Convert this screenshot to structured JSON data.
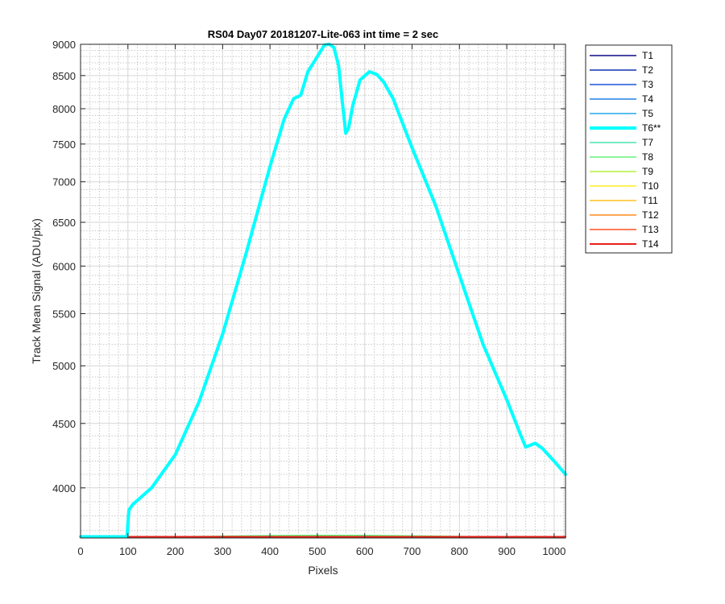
{
  "chart_data": {
    "type": "line",
    "title": "RS04 Day07 20181207-Lite-063 int time = 2 sec",
    "xlabel": "Pixels",
    "ylabel": "Track Mean Signal (ADU/pix)",
    "xlim": [
      0,
      1024
    ],
    "ylim": [
      3650,
      9000
    ],
    "yscale": "log",
    "grid": true,
    "minor_grid": true,
    "legend_position": "outside-right",
    "x_ticks": [
      0,
      100,
      200,
      300,
      400,
      500,
      600,
      700,
      800,
      900,
      1000
    ],
    "y_ticks": [
      4000,
      4500,
      5000,
      5500,
      6000,
      6500,
      7000,
      7500,
      8000,
      8500,
      9000
    ],
    "series": [
      {
        "name": "T1",
        "color": "#0c0c8a",
        "width": 1.5,
        "x": [
          0,
          1024
        ],
        "y": [
          3650,
          3650
        ]
      },
      {
        "name": "T2",
        "color": "#1030b4",
        "width": 1.5,
        "x": [
          0,
          1024
        ],
        "y": [
          3650,
          3650
        ]
      },
      {
        "name": "T3",
        "color": "#1a55d8",
        "width": 1.5,
        "x": [
          0,
          1024
        ],
        "y": [
          3650,
          3650
        ]
      },
      {
        "name": "T4",
        "color": "#2080e6",
        "width": 1.5,
        "x": [
          0,
          1024
        ],
        "y": [
          3650,
          3650
        ]
      },
      {
        "name": "T5",
        "color": "#25a8ee",
        "width": 1.5,
        "x": [
          0,
          1024
        ],
        "y": [
          3650,
          3650
        ]
      },
      {
        "name": "T6**",
        "color": "#00ffff",
        "width": 4,
        "x": [
          0,
          98,
          102,
          110,
          150,
          200,
          250,
          300,
          350,
          400,
          430,
          450,
          465,
          480,
          500,
          515,
          525,
          535,
          545,
          552,
          560,
          566,
          575,
          590,
          610,
          625,
          640,
          660,
          700,
          750,
          800,
          850,
          900,
          930,
          940,
          960,
          975,
          1000,
          1024
        ],
        "y": [
          3650,
          3650,
          3840,
          3880,
          4000,
          4250,
          4680,
          5300,
          6150,
          7200,
          7850,
          8150,
          8200,
          8560,
          8800,
          8990,
          9000,
          8950,
          8650,
          8150,
          7650,
          7720,
          8050,
          8430,
          8560,
          8520,
          8400,
          8150,
          7450,
          6700,
          5900,
          5200,
          4700,
          4400,
          4310,
          4340,
          4300,
          4200,
          4100
        ]
      },
      {
        "name": "T7",
        "color": "#48e6b0",
        "width": 1.5,
        "x": [
          0,
          100,
          200,
          300,
          400,
          500,
          600,
          700,
          800,
          900,
          1024
        ],
        "y": [
          3650,
          3650,
          3654,
          3658,
          3661,
          3663,
          3662,
          3660,
          3657,
          3654,
          3650
        ]
      },
      {
        "name": "T8",
        "color": "#66f27a",
        "width": 1.5,
        "x": [
          0,
          100,
          200,
          300,
          400,
          500,
          600,
          700,
          800,
          900,
          1024
        ],
        "y": [
          3650,
          3652,
          3657,
          3662,
          3666,
          3668,
          3667,
          3664,
          3660,
          3655,
          3652
        ]
      },
      {
        "name": "T9",
        "color": "#b6f040",
        "width": 1.5,
        "x": [
          0,
          1024
        ],
        "y": [
          3650,
          3650
        ]
      },
      {
        "name": "T10",
        "color": "#ffee22",
        "width": 1.5,
        "x": [
          0,
          1024
        ],
        "y": [
          3650,
          3650
        ]
      },
      {
        "name": "T11",
        "color": "#ffc020",
        "width": 1.5,
        "x": [
          0,
          1024
        ],
        "y": [
          3650,
          3650
        ]
      },
      {
        "name": "T12",
        "color": "#ff8a1e",
        "width": 1.5,
        "x": [
          0,
          1024
        ],
        "y": [
          3650,
          3650
        ]
      },
      {
        "name": "T13",
        "color": "#ff5020",
        "width": 1.5,
        "x": [
          0,
          1024
        ],
        "y": [
          3650,
          3650
        ]
      },
      {
        "name": "T14",
        "color": "#e8201a",
        "width": 2,
        "x": [
          0,
          1024
        ],
        "y": [
          3650,
          3650
        ]
      }
    ]
  }
}
